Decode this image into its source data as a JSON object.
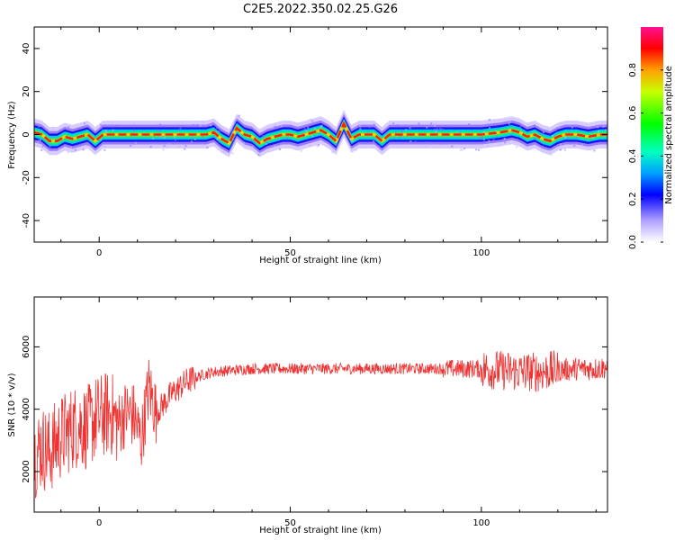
{
  "title": "C2E5.2022.350.02.25.G26",
  "chart_data": [
    {
      "type": "heatmap",
      "panel": "top",
      "xlabel": "Height of straight line (km)",
      "ylabel": "Frequency (Hz)",
      "xlim": [
        -17,
        133
      ],
      "ylim": [
        -50,
        50
      ],
      "x_ticks": [
        0,
        50,
        100
      ],
      "y_ticks": [
        -40,
        -20,
        0,
        20,
        40
      ],
      "x_tick_labels": [
        "0",
        "50",
        "100"
      ],
      "y_tick_labels": [
        "-40",
        "-20",
        "0",
        "20",
        "40"
      ],
      "ridge": {
        "x": [
          -17,
          -15,
          -13,
          -11,
          -9,
          -7,
          -5,
          -3,
          -1,
          1,
          5,
          10,
          15,
          20,
          25,
          28,
          30,
          32,
          34,
          36,
          38,
          40,
          42,
          44,
          46,
          48,
          50,
          52,
          54,
          56,
          58,
          60,
          62,
          64,
          66,
          68,
          70,
          72,
          74,
          76,
          80,
          85,
          90,
          95,
          100,
          105,
          108,
          110,
          112,
          114,
          116,
          118,
          120,
          122,
          125,
          128,
          131,
          133
        ],
        "y": [
          1,
          0,
          -3,
          -3,
          -1,
          -2,
          -1,
          0,
          -3,
          0,
          0,
          0,
          0,
          0,
          0,
          0,
          1,
          -2,
          -4,
          3,
          0,
          -1,
          -4,
          -2,
          -1,
          0,
          0,
          -1,
          0,
          1,
          2,
          0,
          -3,
          5,
          -2,
          0,
          0,
          0,
          -3,
          0,
          0,
          0,
          0,
          0,
          0,
          1,
          2,
          1,
          -1,
          0,
          -2,
          -3,
          -1,
          0,
          0,
          -1,
          0,
          0
        ]
      },
      "colorbar": {
        "label": "Normalized spectral amplitude",
        "range": [
          0,
          1
        ],
        "ticks": [
          0,
          0.2,
          0.4,
          0.6,
          0.8
        ],
        "tick_labels": [
          "0.0",
          "0.2",
          "0.4",
          "0.6",
          "0.8"
        ],
        "colors": [
          "#ffffff",
          "#0000ff",
          "#00c8ff",
          "#00ff60",
          "#b0ff00",
          "#ffa000",
          "#ff0000",
          "#ff1090"
        ]
      }
    },
    {
      "type": "line",
      "panel": "bottom",
      "xlabel": "Height of straight line (km)",
      "ylabel": "SNR (10 * v/v)",
      "xlim": [
        -17,
        133
      ],
      "ylim": [
        700,
        7600
      ],
      "x_ticks": [
        0,
        50,
        100
      ],
      "y_ticks": [
        2000,
        4000,
        6000
      ],
      "x_tick_labels": [
        "0",
        "50",
        "100"
      ],
      "y_tick_labels": [
        "2000",
        "4000",
        "6000"
      ],
      "series": [
        {
          "color": "#ee3333",
          "x": [
            -17,
            -15,
            -13,
            -11,
            -9,
            -7,
            -5,
            -3,
            -1,
            1,
            3,
            5,
            7,
            9,
            11,
            13,
            15,
            17,
            19,
            21,
            23,
            25,
            27,
            30,
            35,
            40,
            45,
            50,
            55,
            60,
            65,
            70,
            75,
            80,
            85,
            90,
            95,
            100,
            105,
            110,
            115,
            120,
            125,
            130,
            133
          ],
          "y": [
            2500,
            2800,
            2600,
            3000,
            3200,
            3400,
            3500,
            3400,
            3700,
            3800,
            3900,
            3500,
            3900,
            3800,
            3000,
            4700,
            3900,
            4200,
            4500,
            4700,
            4900,
            5000,
            5100,
            5200,
            5250,
            5300,
            5300,
            5300,
            5300,
            5300,
            5300,
            5300,
            5300,
            5300,
            5300,
            5300,
            5300,
            5300,
            5250,
            5200,
            5200,
            5250,
            5300,
            5300,
            5350
          ]
        }
      ]
    }
  ]
}
